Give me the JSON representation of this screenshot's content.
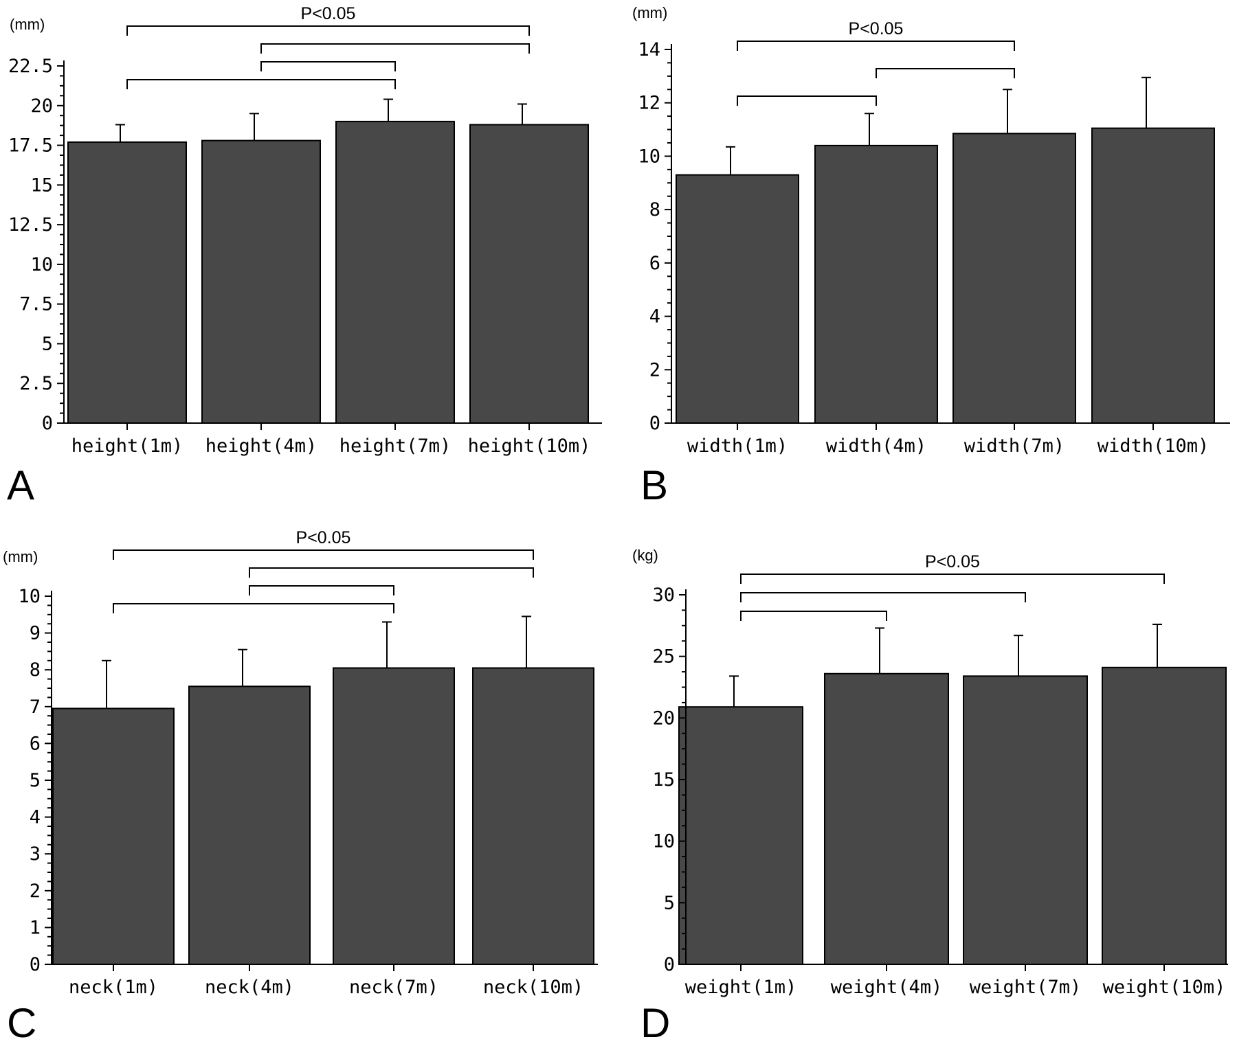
{
  "chart_data": [
    {
      "type": "bar",
      "panel_label": "A",
      "unit": "(mm)",
      "categories": [
        "height(1m)",
        "height(4m)",
        "height(7m)",
        "height(10m)"
      ],
      "values": [
        17.7,
        17.8,
        19.0,
        18.8
      ],
      "errors": [
        1.1,
        1.7,
        1.4,
        1.3
      ],
      "ylim": [
        0,
        22.5
      ],
      "yticks": [
        0,
        2.5,
        5,
        7.5,
        10,
        12.5,
        15,
        17.5,
        20,
        22.5
      ],
      "ytick_labels": [
        "0",
        "2.5",
        "5",
        "7.5",
        "10",
        "12.5",
        "15",
        "17.5",
        "20",
        "22.5"
      ],
      "bar_color": "#484848",
      "significance": [
        {
          "from": 0,
          "to": 3,
          "label": "P<0.05"
        },
        {
          "from": 1,
          "to": 3,
          "label": ""
        },
        {
          "from": 1,
          "to": 2,
          "label": ""
        },
        {
          "from": 0,
          "to": 2,
          "label": ""
        }
      ]
    },
    {
      "type": "bar",
      "panel_label": "B",
      "unit": "(mm)",
      "categories": [
        "width(1m)",
        "width(4m)",
        "width(7m)",
        "width(10m)"
      ],
      "values": [
        9.3,
        10.4,
        10.85,
        11.05
      ],
      "errors": [
        1.05,
        1.2,
        1.65,
        1.9
      ],
      "ylim": [
        0,
        14
      ],
      "yticks": [
        0,
        2,
        4,
        6,
        8,
        10,
        12,
        14
      ],
      "ytick_labels": [
        "0",
        "2",
        "4",
        "6",
        "8",
        "10",
        "12",
        "14"
      ],
      "bar_color": "#484848",
      "significance": [
        {
          "from": 0,
          "to": 2,
          "label": "P<0.05"
        },
        {
          "from": 1,
          "to": 2,
          "label": ""
        },
        {
          "from": 0,
          "to": 1,
          "label": ""
        }
      ]
    },
    {
      "type": "bar",
      "panel_label": "C",
      "unit": "(mm)",
      "categories": [
        "neck(1m)",
        "neck(4m)",
        "neck(7m)",
        "neck(10m)"
      ],
      "values": [
        6.95,
        7.55,
        8.05,
        8.05
      ],
      "errors": [
        1.3,
        1.0,
        1.25,
        1.4
      ],
      "ylim": [
        0,
        10
      ],
      "yticks": [
        0,
        1,
        2,
        3,
        4,
        5,
        6,
        7,
        8,
        9,
        10
      ],
      "ytick_labels": [
        "0",
        "1",
        "2",
        "3",
        "4",
        "5",
        "6",
        "7",
        "8",
        "9",
        "10"
      ],
      "bar_color": "#484848",
      "significance": [
        {
          "from": 0,
          "to": 3,
          "label": "P<0.05"
        },
        {
          "from": 1,
          "to": 3,
          "label": ""
        },
        {
          "from": 1,
          "to": 2,
          "label": ""
        },
        {
          "from": 0,
          "to": 2,
          "label": ""
        }
      ]
    },
    {
      "type": "bar",
      "panel_label": "D",
      "unit": "(kg)",
      "categories": [
        "weight(1m)",
        "weight(4m)",
        "weight(7m)",
        "weight(10m)"
      ],
      "values": [
        20.9,
        23.6,
        23.4,
        24.1
      ],
      "errors": [
        2.5,
        3.7,
        3.3,
        3.5
      ],
      "ylim": [
        0,
        30
      ],
      "yticks": [
        0,
        5,
        10,
        15,
        20,
        25,
        30
      ],
      "ytick_labels": [
        "0",
        "5",
        "10",
        "15",
        "20",
        "25",
        "30"
      ],
      "bar_color": "#484848",
      "significance": [
        {
          "from": 0,
          "to": 3,
          "label": "P<0.05"
        },
        {
          "from": 0,
          "to": 2,
          "label": ""
        },
        {
          "from": 0,
          "to": 1,
          "label": ""
        }
      ]
    }
  ]
}
